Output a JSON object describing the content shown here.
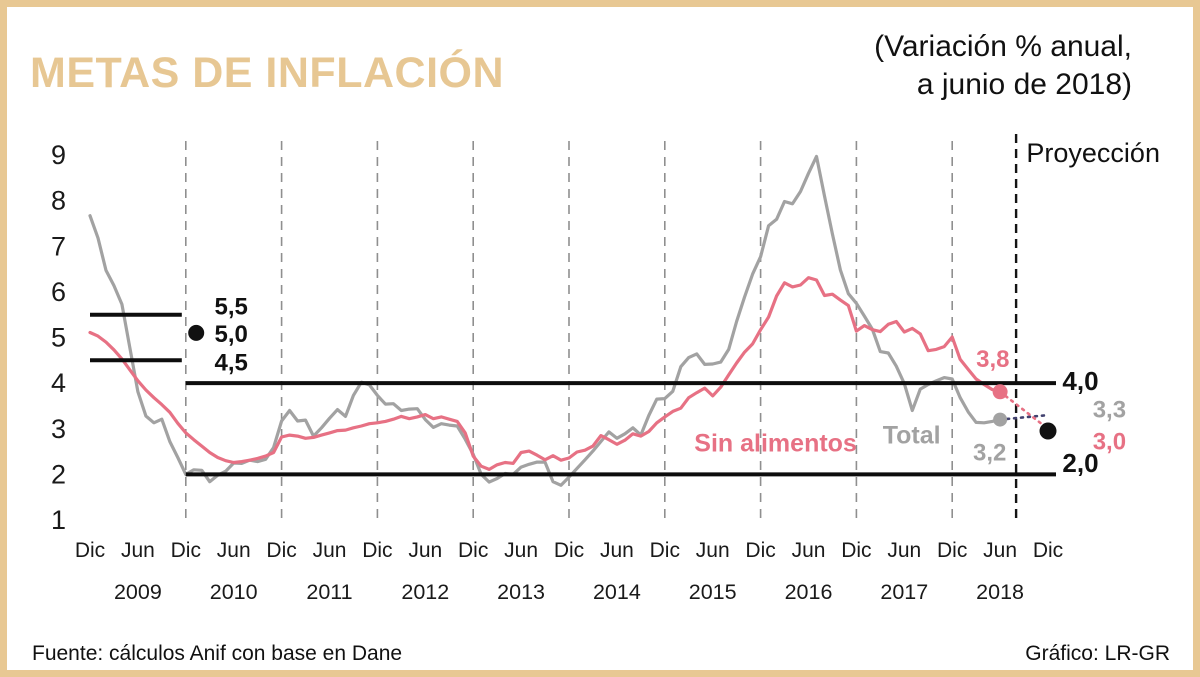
{
  "header": {
    "title": "METAS DE INFLACIÓN",
    "subtitle_line1": "(Variación % anual,",
    "subtitle_line2": "a junio de 2018)"
  },
  "footer": {
    "source": "Fuente: cálculos Anif con base en Dane",
    "credit": "Gráfico: LR-GR"
  },
  "colors": {
    "accent_tan": "#e8c893",
    "total_gray": "#a2a2a2",
    "sin_alimentos_pink": "#e77184",
    "black": "#111111"
  },
  "chart_data": {
    "type": "line",
    "title": "METAS DE INFLACIÓN",
    "subtitle": "(Variación % anual, a junio de 2018)",
    "ylabel": "Variación % anual",
    "ylim": [
      1,
      9
    ],
    "yticks": [
      9,
      8,
      7,
      6,
      5,
      4,
      3,
      2,
      1
    ],
    "x_start_month": "Dic 2008",
    "x_end_month": "Dic 2018",
    "x_tick_labels": [
      "Dic",
      "Jun",
      "Dic",
      "Jun",
      "Dic",
      "Jun",
      "Dic",
      "Jun",
      "Dic",
      "Jun",
      "Dic",
      "Jun",
      "Dic",
      "Jun",
      "Dic",
      "Jun",
      "Dic",
      "Jun",
      "Dic",
      "Jun",
      "Dic"
    ],
    "year_labels": [
      "2009",
      "2010",
      "2011",
      "2012",
      "2013",
      "2014",
      "2015",
      "2016",
      "2017",
      "2018"
    ],
    "gridline_months": [
      12,
      24,
      36,
      48,
      60,
      72,
      84,
      96,
      108
    ],
    "projection_line": {
      "label": "Proyección",
      "month": 116
    },
    "projection_end_month": 120,
    "target_lines": [
      {
        "label": "5,5",
        "value": 5.5,
        "from_month": 0,
        "to_month": 11.5
      },
      {
        "label": "4,5",
        "value": 4.5,
        "from_month": 0,
        "to_month": 11.5
      },
      {
        "label": "4,0",
        "value": 4.0,
        "from_month": 12,
        "to_month": 121
      },
      {
        "label": "2,0",
        "value": 2.0,
        "from_month": 12,
        "to_month": 121
      }
    ],
    "series": [
      {
        "name": "Total",
        "color": "#a2a2a2",
        "projection_color": "#41416f",
        "end_value_label": "3,2",
        "projection_value": 3.3,
        "projection_label": "3,3",
        "values": [
          7.67,
          7.18,
          6.47,
          6.14,
          5.73,
          4.77,
          3.81,
          3.28,
          3.13,
          3.21,
          2.72,
          2.37,
          2.0,
          2.1,
          2.09,
          1.84,
          1.98,
          2.07,
          2.25,
          2.24,
          2.31,
          2.28,
          2.33,
          2.59,
          3.17,
          3.4,
          3.17,
          3.19,
          2.84,
          3.02,
          3.23,
          3.42,
          3.27,
          3.73,
          4.02,
          3.96,
          3.73,
          3.54,
          3.55,
          3.4,
          3.43,
          3.44,
          3.2,
          3.03,
          3.11,
          3.08,
          3.06,
          2.77,
          2.44,
          2.0,
          1.83,
          1.91,
          2.02,
          2.0,
          2.16,
          2.22,
          2.27,
          2.27,
          1.84,
          1.76,
          1.94,
          2.13,
          2.32,
          2.51,
          2.72,
          2.93,
          2.79,
          2.89,
          3.02,
          2.86,
          3.29,
          3.65,
          3.66,
          3.82,
          4.36,
          4.56,
          4.64,
          4.41,
          4.42,
          4.46,
          4.74,
          5.35,
          5.89,
          6.39,
          6.77,
          7.45,
          7.59,
          7.98,
          7.93,
          8.2,
          8.6,
          8.97,
          8.1,
          7.27,
          6.48,
          5.96,
          5.75,
          5.47,
          5.18,
          4.69,
          4.66,
          4.37,
          3.99,
          3.4,
          3.87,
          3.97,
          4.05,
          4.12,
          4.09,
          3.68,
          3.37,
          3.14,
          3.13,
          3.16,
          3.2
        ]
      },
      {
        "name": "Sin alimentos",
        "color": "#e77184",
        "projection_color": "#e77184",
        "end_value_label": "3,8",
        "projection_value": 3.0,
        "projection_label": "3,0",
        "values": [
          5.11,
          5.03,
          4.9,
          4.73,
          4.53,
          4.29,
          4.05,
          3.85,
          3.68,
          3.53,
          3.36,
          3.12,
          2.91,
          2.76,
          2.62,
          2.48,
          2.37,
          2.3,
          2.26,
          2.28,
          2.31,
          2.35,
          2.4,
          2.48,
          2.82,
          2.86,
          2.84,
          2.79,
          2.81,
          2.86,
          2.91,
          2.96,
          2.97,
          3.02,
          3.06,
          3.11,
          3.13,
          3.16,
          3.21,
          3.27,
          3.22,
          3.26,
          3.31,
          3.22,
          3.26,
          3.21,
          3.16,
          2.91,
          2.4,
          2.18,
          2.11,
          2.21,
          2.26,
          2.24,
          2.48,
          2.51,
          2.42,
          2.32,
          2.41,
          2.31,
          2.36,
          2.49,
          2.53,
          2.62,
          2.85,
          2.76,
          2.66,
          2.75,
          2.89,
          2.84,
          2.94,
          3.13,
          3.26,
          3.38,
          3.45,
          3.68,
          3.79,
          3.89,
          3.72,
          3.91,
          4.18,
          4.44,
          4.68,
          4.86,
          5.17,
          5.45,
          5.91,
          6.2,
          6.11,
          6.15,
          6.31,
          6.26,
          5.92,
          5.95,
          5.82,
          5.7,
          5.14,
          5.26,
          5.17,
          5.13,
          5.29,
          5.35,
          5.12,
          5.2,
          5.08,
          4.71,
          4.74,
          4.8,
          5.01,
          4.52,
          4.3,
          4.09,
          3.97,
          3.86,
          3.81
        ]
      }
    ],
    "dots": [
      {
        "name": "target-midpoint-2009-dot",
        "month": 13.3,
        "value": 5.1,
        "color": "#111111",
        "r": 8
      },
      {
        "name": "total-june-2018-dot",
        "month": 114,
        "value": 3.2,
        "color": "#a2a2a2",
        "r": 7
      },
      {
        "name": "sin-alimentos-june-2018-dot",
        "month": 114,
        "value": 3.81,
        "color": "#e77184",
        "r": 7.5
      },
      {
        "name": "projection-dec-2018-dot",
        "month": 120,
        "value": 2.95,
        "color": "#111111",
        "r": 8.5
      }
    ],
    "annotations": [
      {
        "name": "label-5-5",
        "text": "5,5",
        "month": 15.6,
        "value": 5.5,
        "color": "#111111",
        "size": 24,
        "bold": true
      },
      {
        "name": "label-5-0",
        "text": "5,0",
        "month": 15.6,
        "value": 4.9,
        "color": "#111111",
        "size": 24,
        "bold": true
      },
      {
        "name": "label-4-5",
        "text": "4,5",
        "month": 15.6,
        "value": 4.28,
        "color": "#111111",
        "size": 24,
        "bold": true
      },
      {
        "name": "label-4-0",
        "text": "4,0",
        "month": 121.8,
        "value": 3.85,
        "color": "#111111",
        "size": 26,
        "bold": true
      },
      {
        "name": "label-2-0",
        "text": "2,0",
        "month": 121.8,
        "value": 2.05,
        "color": "#111111",
        "size": 26,
        "bold": true
      },
      {
        "name": "series-label-sin-alimentos",
        "text": "Sin alimentos",
        "month": 75.7,
        "value": 2.5,
        "color": "#e77184",
        "size": 25,
        "bold": true
      },
      {
        "name": "series-label-total",
        "text": "Total",
        "month": 99.3,
        "value": 2.68,
        "color": "#a2a2a2",
        "size": 25,
        "bold": true
      },
      {
        "name": "label-3-8",
        "text": "3,8",
        "month": 111.0,
        "value": 4.35,
        "color": "#e77184",
        "size": 24,
        "bold": true
      },
      {
        "name": "label-3-2",
        "text": "3,2",
        "month": 110.6,
        "value": 2.3,
        "color": "#a2a2a2",
        "size": 24,
        "bold": true
      },
      {
        "name": "label-3-3",
        "text": "3,3",
        "month": 125.6,
        "value": 3.25,
        "color": "#a2a2a2",
        "size": 24,
        "bold": true
      },
      {
        "name": "label-3-0",
        "text": "3,0",
        "month": 125.6,
        "value": 2.55,
        "color": "#e77184",
        "size": 24,
        "bold": true
      },
      {
        "name": "projection-label",
        "text": "Proyección",
        "month": 117.3,
        "value": 8.85,
        "color": "#111111",
        "size": 27,
        "bold": false
      }
    ]
  }
}
